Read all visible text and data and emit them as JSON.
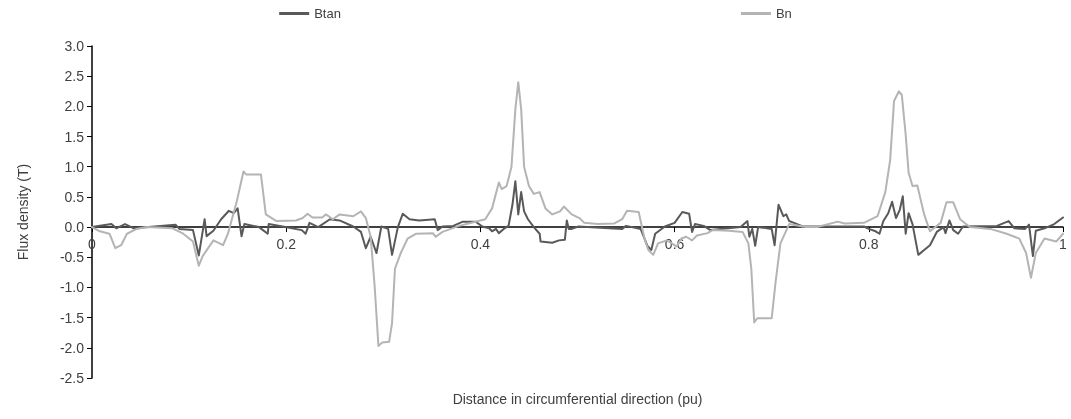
{
  "chart_data": {
    "type": "line",
    "xlabel": "Distance in circumferential direction (pu)",
    "ylabel": "Flux density (T)",
    "xlim": [
      0,
      1
    ],
    "xticks": [
      0,
      0.2,
      0.4,
      0.6,
      0.8,
      1
    ],
    "ylim": [
      -2.5,
      3.0
    ],
    "yticks": [
      {
        "value": -2.5,
        "label": "-2.5"
      },
      {
        "value": -2,
        "label": "-2.0"
      },
      {
        "value": -1.5,
        "label": "-1.5"
      },
      {
        "value": -1,
        "label": "-1.0"
      },
      {
        "value": -0.5,
        "label": "-0.5"
      },
      {
        "value": 0,
        "label": "0.0"
      },
      {
        "value": 0.5,
        "label": "0.5"
      },
      {
        "value": 1,
        "label": "1.0"
      },
      {
        "value": 1.5,
        "label": "1.5"
      },
      {
        "value": 2,
        "label": "2.0"
      },
      {
        "value": 2.5,
        "label": "2.5"
      },
      {
        "value": 3,
        "label": "3.0"
      }
    ],
    "grid": false,
    "legend": "top",
    "marker": "none",
    "line_style": "solid",
    "series": [
      {
        "name": "Btan",
        "color": "#595959",
        "x": [
          0,
          0.02,
          0.025,
          0.034,
          0.043,
          0.086,
          0.09,
          0.104,
          0.11,
          0.116,
          0.118,
          0.125,
          0.133,
          0.141,
          0.146,
          0.15,
          0.154,
          0.157,
          0.172,
          0.181,
          0.182,
          0.199,
          0.216,
          0.22,
          0.224,
          0.233,
          0.245,
          0.255,
          0.269,
          0.277,
          0.282,
          0.287,
          0.293,
          0.298,
          0.305,
          0.309,
          0.315,
          0.32,
          0.327,
          0.337,
          0.353,
          0.356,
          0.361,
          0.372,
          0.382,
          0.395,
          0.402,
          0.409,
          0.412,
          0.416,
          0.419,
          0.424,
          0.429,
          0.433,
          0.436,
          0.439,
          0.442,
          0.445,
          0.449,
          0.455,
          0.461,
          0.462,
          0.474,
          0.481,
          0.487,
          0.489,
          0.491,
          0.494,
          0.501,
          0.546,
          0.55,
          0.565,
          0.572,
          0.576,
          0.58,
          0.59,
          0.6,
          0.608,
          0.615,
          0.618,
          0.621,
          0.63,
          0.637,
          0.668,
          0.675,
          0.677,
          0.68,
          0.683,
          0.686,
          0.7,
          0.703,
          0.707,
          0.712,
          0.715,
          0.718,
          0.723,
          0.732,
          0.747,
          0.795,
          0.8,
          0.807,
          0.811,
          0.815,
          0.82,
          0.824,
          0.828,
          0.832,
          0.835,
          0.838,
          0.841,
          0.845,
          0.851,
          0.857,
          0.863,
          0.87,
          0.877,
          0.879,
          0.883,
          0.887,
          0.892,
          0.897,
          0.932,
          0.944,
          0.95,
          0.961,
          0.965,
          0.969,
          0.972,
          0.981,
          0.991,
          1
        ],
        "values": [
          0,
          0.05,
          -0.02,
          0.05,
          -0.02,
          0.04,
          -0.03,
          -0.05,
          -0.47,
          0.13,
          -0.15,
          -0.06,
          0.13,
          0.27,
          0.23,
          0.31,
          -0.15,
          0.05,
          0,
          -0.11,
          0.05,
          0,
          -0.05,
          -0.11,
          0.07,
          0,
          0.13,
          0.11,
          0.01,
          -0.08,
          -0.35,
          -0.16,
          -0.43,
          0.01,
          -0.03,
          -0.46,
          0,
          0.22,
          0.13,
          0.11,
          0.13,
          -0.05,
          0.01,
          0.02,
          0.09,
          0.09,
          0.01,
          -0.02,
          -0.07,
          -0.03,
          -0.1,
          -0.03,
          0.02,
          0.37,
          0.76,
          0.21,
          0.58,
          0.26,
          0.13,
          0,
          -0.11,
          -0.24,
          -0.26,
          -0.22,
          -0.21,
          0.11,
          -0.03,
          -0.03,
          0.01,
          -0.03,
          0.02,
          -0.03,
          -0.31,
          -0.38,
          -0.11,
          0.01,
          0.07,
          0.25,
          0.22,
          -0.08,
          0.05,
          0.02,
          -0.05,
          0,
          0.1,
          -0.16,
          -0.03,
          -0.31,
          0,
          -0.03,
          -0.3,
          0.37,
          0.18,
          0.21,
          0.1,
          0.07,
          0.01,
          0.01,
          0.01,
          -0.03,
          -0.07,
          -0.11,
          0.1,
          0.23,
          0.42,
          0.15,
          0.29,
          0.51,
          -0.11,
          0.23,
          0.05,
          -0.46,
          -0.38,
          -0.3,
          -0.08,
          0,
          -0.1,
          0.11,
          -0.05,
          -0.11,
          0.01,
          0.02,
          0.1,
          -0.02,
          -0.03,
          0.04,
          -0.48,
          -0.06,
          -0.02,
          0.05,
          0.16
        ]
      },
      {
        "name": "Bn",
        "color": "#b4b4b4",
        "x": [
          0,
          0.008,
          0.018,
          0.024,
          0.03,
          0.036,
          0.046,
          0.056,
          0.083,
          0.094,
          0.104,
          0.11,
          0.114,
          0.125,
          0.135,
          0.14,
          0.149,
          0.156,
          0.159,
          0.174,
          0.179,
          0.19,
          0.21,
          0.217,
          0.222,
          0.227,
          0.237,
          0.241,
          0.248,
          0.255,
          0.269,
          0.277,
          0.282,
          0.287,
          0.291,
          0.295,
          0.299,
          0.306,
          0.309,
          0.312,
          0.318,
          0.325,
          0.334,
          0.351,
          0.354,
          0.361,
          0.378,
          0.395,
          0.405,
          0.412,
          0.419,
          0.422,
          0.427,
          0.432,
          0.436,
          0.439,
          0.442,
          0.445,
          0.45,
          0.455,
          0.461,
          0.467,
          0.474,
          0.482,
          0.486,
          0.494,
          0.502,
          0.507,
          0.521,
          0.538,
          0.546,
          0.551,
          0.563,
          0.569,
          0.573,
          0.578,
          0.583,
          0.592,
          0.602,
          0.607,
          0.612,
          0.618,
          0.623,
          0.634,
          0.639,
          0.656,
          0.67,
          0.676,
          0.679,
          0.682,
          0.685,
          0.7,
          0.704,
          0.709,
          0.718,
          0.735,
          0.747,
          0.768,
          0.775,
          0.795,
          0.809,
          0.817,
          0.822,
          0.826,
          0.831,
          0.834,
          0.838,
          0.841,
          0.845,
          0.85,
          0.857,
          0.863,
          0.874,
          0.88,
          0.887,
          0.894,
          0.904,
          0.925,
          0.942,
          0.955,
          0.962,
          0.967,
          0.972,
          0.981,
          0.993,
          1
        ],
        "values": [
          0,
          -0.07,
          -0.11,
          -0.35,
          -0.3,
          -0.11,
          -0.03,
          0,
          -0.02,
          -0.11,
          -0.24,
          -0.64,
          -0.48,
          -0.22,
          -0.3,
          -0.11,
          0.42,
          0.92,
          0.87,
          0.87,
          0.21,
          0.1,
          0.11,
          0.15,
          0.22,
          0.16,
          0.16,
          0.21,
          0.13,
          0.21,
          0.18,
          0.26,
          0.15,
          -0.16,
          -0.96,
          -1.97,
          -1.91,
          -1.9,
          -1.59,
          -0.69,
          -0.43,
          -0.19,
          -0.11,
          -0.1,
          -0.16,
          -0.08,
          0.02,
          0.09,
          0.13,
          0.31,
          0.74,
          0.63,
          0.68,
          1,
          1.95,
          2.4,
          1.95,
          1,
          0.68,
          0.55,
          0.58,
          0.31,
          0.21,
          0.26,
          0.34,
          0.21,
          0.15,
          0.07,
          0.05,
          0.06,
          0.13,
          0.27,
          0.25,
          -0.19,
          -0.38,
          -0.46,
          -0.27,
          -0.22,
          -0.32,
          -0.19,
          -0.16,
          -0.22,
          -0.14,
          -0.1,
          -0.05,
          -0.06,
          -0.08,
          -0.27,
          -0.69,
          -1.58,
          -1.51,
          -1.51,
          -0.91,
          -0.27,
          0.05,
          0,
          0,
          0.09,
          0.06,
          0.07,
          0.18,
          0.58,
          1.11,
          2.09,
          2.25,
          2.19,
          1.53,
          0.9,
          0.68,
          0.69,
          0.21,
          -0.07,
          0.07,
          0.41,
          0.41,
          0.13,
          0,
          -0.03,
          -0.11,
          -0.19,
          -0.43,
          -0.84,
          -0.43,
          -0.19,
          -0.24,
          -0.11
        ]
      }
    ]
  }
}
